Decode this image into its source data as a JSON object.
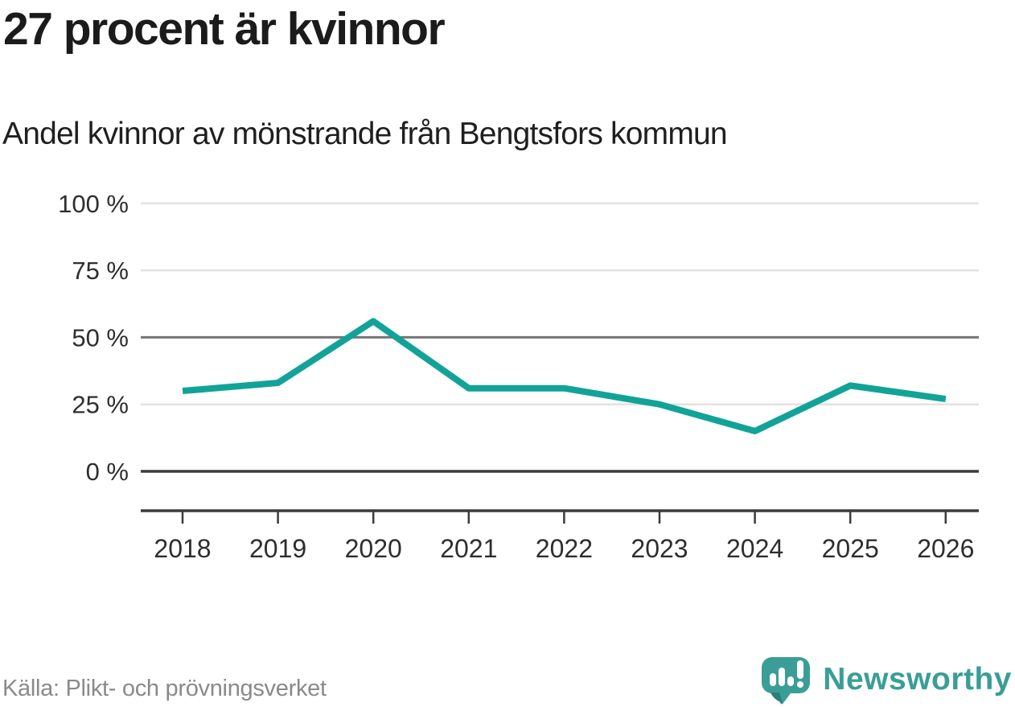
{
  "header": {
    "title": "27 procent är kvinnor",
    "subtitle": "Andel kvinnor av mönstrande från Bengtsfors kommun"
  },
  "footer": {
    "source": "Källa: Plikt- och prövningsverket",
    "logo_text": "Newsworthy",
    "logo_icon": "newsworthy-bar-chart-speech-bubble-icon"
  },
  "colors": {
    "accent": "#12a398",
    "logo_teal": "#3a9e96",
    "logo_teal_dark": "#2b7f79",
    "grid_light": "#e2e2e2",
    "grid_mid": "#757575",
    "axis_dark": "#3b3b3b",
    "text_dark": "#1b1b1b",
    "text_gray": "#8a8a8a"
  },
  "chart_data": {
    "type": "line",
    "title": "27 procent är kvinnor",
    "subtitle": "Andel kvinnor av mönstrande från Bengtsfors kommun",
    "categories": [
      "2018",
      "2019",
      "2020",
      "2021",
      "2022",
      "2023",
      "2024",
      "2025",
      "2026"
    ],
    "series": [
      {
        "name": "Andel kvinnor av mönstrande",
        "color": "#12a398",
        "values": [
          30,
          33,
          56,
          31,
          31,
          25,
          15,
          32,
          27
        ]
      }
    ],
    "unit": "%",
    "ylim": [
      0,
      100
    ],
    "y_ticks": [
      0,
      25,
      50,
      75,
      100
    ],
    "y_tick_labels": [
      "0 %",
      "25 %",
      "50 %",
      "75 %",
      "100 %"
    ],
    "grid": true,
    "legend": "none",
    "gridline_emphasis": {
      "dark_at": 0,
      "medium_at": 50,
      "light_at": [
        25,
        75,
        100
      ]
    }
  }
}
